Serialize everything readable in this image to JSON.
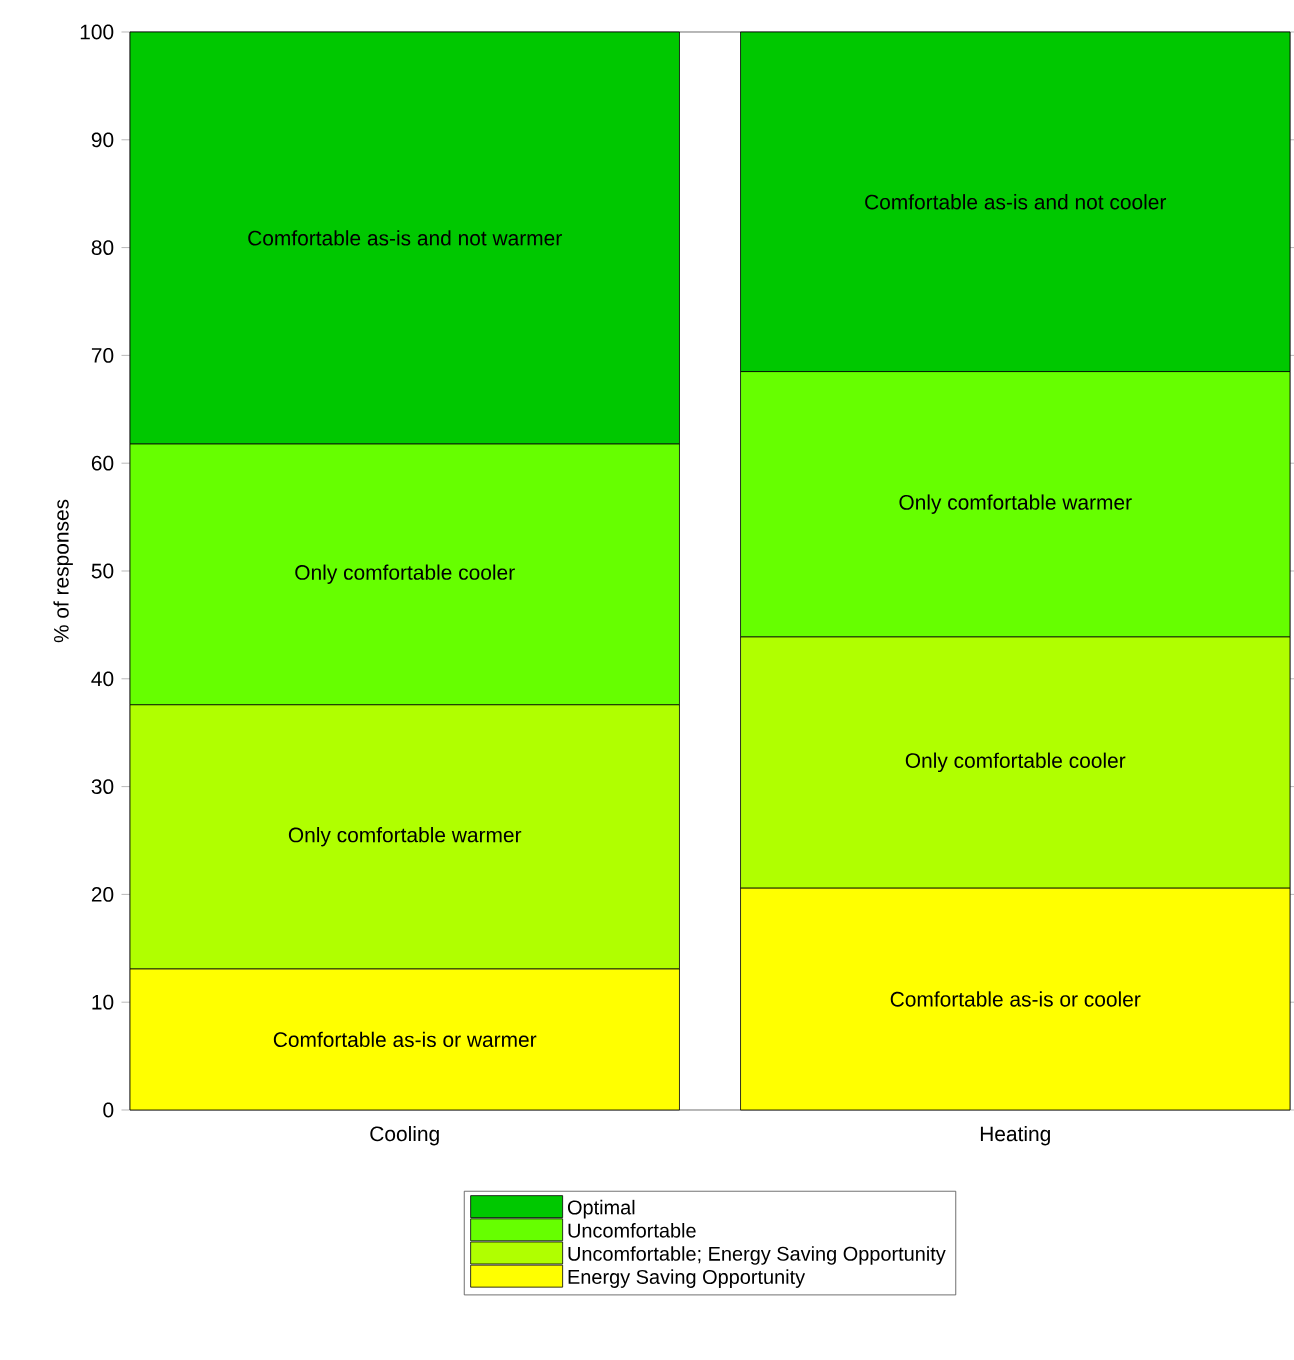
{
  "chart_data": {
    "type": "bar",
    "stacked": true,
    "ylabel": "% of responses",
    "categories": [
      "Cooling",
      "Heating"
    ],
    "ylim": [
      0,
      100
    ],
    "yticks": [
      0,
      10,
      20,
      30,
      40,
      50,
      60,
      70,
      80,
      90,
      100
    ],
    "legend": "bottom",
    "series": [
      {
        "name": "Energy Saving Opportunity",
        "color": "#ffff00",
        "values": [
          13.1,
          20.6
        ],
        "value_labels": [
          "Comfortable as-is or warmer",
          "Comfortable as-is or cooler"
        ]
      },
      {
        "name": "Uncomfortable; Energy Saving Opportunity",
        "color": "#b0ff00",
        "values": [
          24.5,
          23.3
        ],
        "value_labels": [
          "Only comfortable warmer",
          "Only comfortable cooler"
        ]
      },
      {
        "name": "Uncomfortable",
        "color": "#66ff00",
        "values": [
          24.2,
          24.6
        ],
        "value_labels": [
          "Only comfortable cooler",
          "Only comfortable warmer"
        ]
      },
      {
        "name": "Optimal",
        "color": "#00c800",
        "values": [
          38.2,
          31.5
        ],
        "value_labels": [
          "Comfortable as-is and not warmer",
          "Comfortable as-is and not cooler"
        ]
      }
    ]
  }
}
